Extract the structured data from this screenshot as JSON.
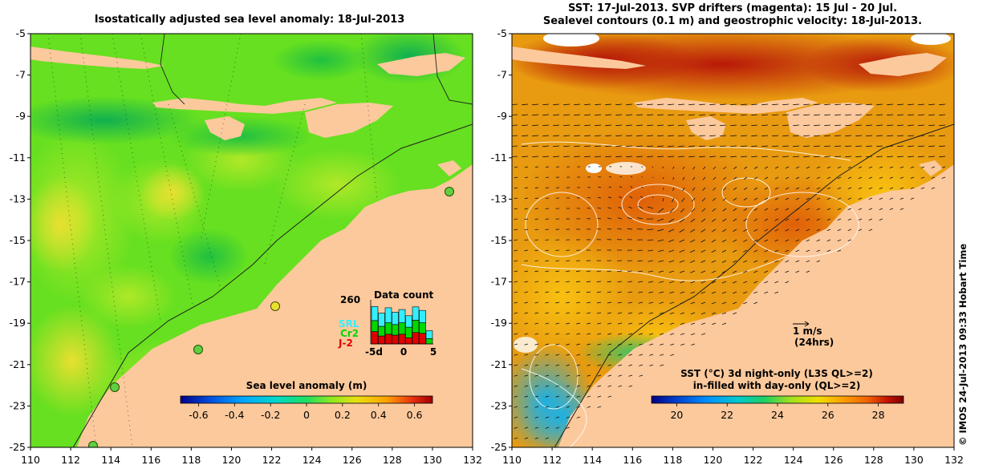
{
  "left_panel": {
    "title": "Isostatically adjusted sea level anomaly: 18-Jul-2013",
    "colorbar_label": "Sea level anomaly (m)",
    "colorbar_ticks": [
      "-0.6",
      "-0.4",
      "-0.2",
      "0",
      "0.2",
      "0.4",
      "0.6"
    ],
    "colorbar_colors": [
      "#00008b",
      "#0050e0",
      "#00a8ff",
      "#00d8c8",
      "#20e060",
      "#90e820",
      "#e8e010",
      "#ffa000",
      "#e83010",
      "#a00000"
    ],
    "inset": {
      "title": "Data count",
      "max_label": "260",
      "series": [
        {
          "name": "SRL",
          "color": "#33eeff"
        },
        {
          "name": "Cr2",
          "color": "#00d800"
        },
        {
          "name": "J-2",
          "color": "#e00000"
        }
      ],
      "x_ticks": [
        "-5d",
        "0",
        "5"
      ]
    }
  },
  "right_panel": {
    "title_line1": "SST: 17-Jul-2013. SVP drifters (magenta): 15 Jul - 20 Jul.",
    "title_line2": "Sealevel contours (0.1 m) and geostrophic velocity: 18-Jul-2013.",
    "scale_arrow_line1": "1 m/s",
    "scale_arrow_line2": "(24hrs)",
    "colorbar_label_line1": "SST (°C)  3d night-only (L3S QL>=2)",
    "colorbar_label_line2": "in-filled with day-only (QL>=2)",
    "colorbar_ticks": [
      "20",
      "22",
      "24",
      "26",
      "28"
    ],
    "colorbar_colors": [
      "#000080",
      "#0040d0",
      "#0090ff",
      "#00c8d0",
      "#20d060",
      "#a0e020",
      "#f0e000",
      "#ffa000",
      "#f06000",
      "#c01000",
      "#800000"
    ]
  },
  "axes": {
    "x_ticks": [
      "110",
      "112",
      "114",
      "116",
      "118",
      "120",
      "122",
      "124",
      "126",
      "128",
      "130",
      "132"
    ],
    "y_ticks": [
      "-5",
      "-7",
      "-9",
      "-11",
      "-13",
      "-15",
      "-17",
      "-19",
      "-21",
      "-23",
      "-25"
    ]
  },
  "credit": "© IMOS 24-Jul-2013 09:33 Hobart Time",
  "colors": {
    "land": "#fcc99c",
    "sla_base": "#66e020",
    "sst_base": "#e89a10"
  }
}
